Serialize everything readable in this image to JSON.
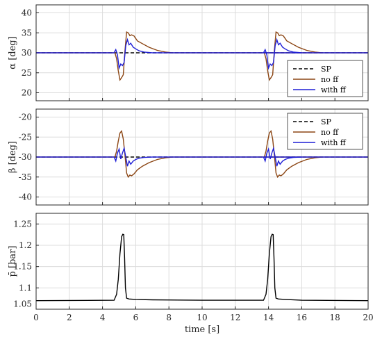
{
  "chart_data": [
    {
      "type": "line",
      "panel": "top",
      "ylabel": "α [deg]",
      "xlabel": "",
      "xlim": [
        0,
        20
      ],
      "ylim": [
        18,
        42
      ],
      "yticks": [
        20,
        25,
        30,
        35,
        40
      ],
      "xticks": [
        0,
        2,
        4,
        6,
        8,
        10,
        12,
        14,
        16,
        18,
        20
      ],
      "grid": true,
      "legend_position": "bottom-right",
      "series": [
        {
          "name": "SP",
          "color": "#000000",
          "dash": true,
          "x": [
            0,
            20
          ],
          "y": [
            30,
            30
          ]
        },
        {
          "name": "no ff",
          "color": "#8B4513",
          "dash": false,
          "x": [
            0,
            4.75,
            4.85,
            4.95,
            5.05,
            5.15,
            5.25,
            5.35,
            5.45,
            5.55,
            5.65,
            5.75,
            5.9,
            6.1,
            6.4,
            6.8,
            7.3,
            7.8,
            8.2,
            20
          ],
          "y": [
            30,
            30,
            28.5,
            25.5,
            23.2,
            23.8,
            24.5,
            30.5,
            35.2,
            35.0,
            34.3,
            34.5,
            34.2,
            33.0,
            32.3,
            31.4,
            30.6,
            30.2,
            30.0,
            30
          ]
        },
        {
          "name": "with ff",
          "color": "#1f1fd6",
          "dash": false,
          "x": [
            0,
            4.7,
            4.8,
            4.9,
            5.0,
            5.1,
            5.2,
            5.3,
            5.4,
            5.5,
            5.6,
            5.7,
            5.85,
            6.0,
            6.2,
            6.5,
            7.0,
            20
          ],
          "y": [
            30,
            30,
            30.8,
            29.5,
            26.2,
            27.2,
            26.8,
            27.6,
            31.8,
            33.3,
            32.0,
            32.4,
            31.4,
            31.0,
            30.5,
            30.2,
            30.0,
            30
          ]
        }
      ]
    },
    {
      "type": "line",
      "panel": "middle",
      "ylabel": "β [deg]",
      "xlabel": "",
      "xlim": [
        0,
        20
      ],
      "ylim": [
        -42,
        -18
      ],
      "yticks": [
        -40,
        -35,
        -30,
        -25,
        -20
      ],
      "xticks": [
        0,
        2,
        4,
        6,
        8,
        10,
        12,
        14,
        16,
        18,
        20
      ],
      "grid": true,
      "legend_position": "top-right",
      "series": [
        {
          "name": "SP",
          "color": "#000000",
          "dash": true,
          "x": [
            0,
            20
          ],
          "y": [
            -30,
            -30
          ]
        },
        {
          "name": "no ff",
          "color": "#8B4513",
          "dash": false,
          "x": [
            0,
            4.75,
            4.85,
            4.95,
            5.05,
            5.15,
            5.25,
            5.35,
            5.45,
            5.55,
            5.65,
            5.75,
            5.9,
            6.1,
            6.4,
            6.8,
            7.3,
            7.8,
            8.2,
            20
          ],
          "y": [
            -30,
            -30,
            -28.5,
            -26.0,
            -24.0,
            -23.5,
            -25.5,
            -29.5,
            -34.0,
            -35.0,
            -34.5,
            -34.7,
            -34.2,
            -33.2,
            -32.3,
            -31.4,
            -30.6,
            -30.2,
            -30.0,
            -30
          ]
        },
        {
          "name": "with ff",
          "color": "#1f1fd6",
          "dash": false,
          "x": [
            0,
            4.7,
            4.8,
            4.9,
            5.0,
            5.1,
            5.2,
            5.3,
            5.4,
            5.5,
            5.6,
            5.7,
            5.85,
            6.0,
            6.2,
            6.5,
            7.0,
            20
          ],
          "y": [
            -30,
            -30,
            -31.0,
            -29.0,
            -28.0,
            -30.5,
            -29.0,
            -27.8,
            -30.0,
            -32.3,
            -31.0,
            -31.8,
            -31.0,
            -30.6,
            -30.3,
            -30.1,
            -30.0,
            -30
          ]
        }
      ]
    },
    {
      "type": "line",
      "panel": "bottom",
      "ylabel": "p̄ [bar]",
      "xlabel": "time [s]",
      "xlim": [
        0,
        20
      ],
      "ylim": [
        1.05,
        1.275
      ],
      "yticks": [
        1.1,
        1.15,
        1.2,
        1.25
      ],
      "yticklabels": [
        "1.1",
        "1.15",
        "1.2",
        "1.25"
      ],
      "extra_ytick_labels": [
        {
          "value": 1.062,
          "label": "1.05"
        }
      ],
      "xticks": [
        0,
        2,
        4,
        6,
        8,
        10,
        12,
        14,
        16,
        18,
        20
      ],
      "grid": true,
      "series": [
        {
          "name": "",
          "color": "#000000",
          "dash": false,
          "x": [
            0,
            4.7,
            4.85,
            4.95,
            5.05,
            5.15,
            5.22,
            5.28,
            5.33,
            5.38,
            5.45,
            5.6,
            6.0,
            7.0,
            10,
            13.7,
            13.85,
            13.95,
            14.05,
            14.15,
            14.22,
            14.28,
            14.33,
            14.38,
            14.45,
            14.6,
            15.0,
            16.0,
            20
          ],
          "y": [
            1.07,
            1.071,
            1.085,
            1.12,
            1.18,
            1.22,
            1.226,
            1.225,
            1.17,
            1.1,
            1.076,
            1.074,
            1.073,
            1.072,
            1.071,
            1.071,
            1.085,
            1.12,
            1.18,
            1.22,
            1.226,
            1.225,
            1.17,
            1.1,
            1.076,
            1.074,
            1.073,
            1.071,
            1.07
          ]
        }
      ]
    }
  ]
}
